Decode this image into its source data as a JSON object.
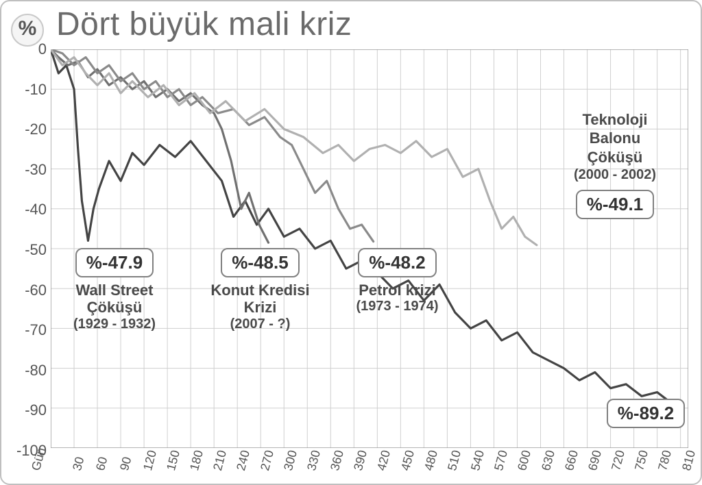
{
  "chart": {
    "type": "line",
    "title": "Dört büyük mali kriz",
    "y_unit_label": "%",
    "title_fontsize": 48,
    "title_color": "#6b6b6b",
    "background_color": "#ffffff",
    "panel_border_color": "#bfbfbf",
    "panel_border_radius": 14,
    "grid_color": "#cfcfcf",
    "grid_stroke_width": 1,
    "axes": {
      "y": {
        "min": -100,
        "max": 0,
        "tick_step": 10,
        "ticks": [
          0,
          -10,
          -20,
          -30,
          -40,
          -50,
          -60,
          -70,
          -80,
          -90,
          -100
        ],
        "tick_labels": [
          "0",
          "-10",
          "-20",
          "-30",
          "-40",
          "-50",
          "-60",
          "-70",
          "-80",
          "-90",
          "-100"
        ],
        "label_fontsize": 22,
        "label_color": "#555555"
      },
      "x": {
        "label": "Gün",
        "min": 0,
        "max": 820,
        "tick_step": 30,
        "ticks": [
          30,
          60,
          90,
          120,
          150,
          180,
          210,
          240,
          270,
          300,
          330,
          360,
          390,
          420,
          450,
          480,
          510,
          540,
          570,
          600,
          630,
          660,
          690,
          720,
          750,
          780,
          810
        ],
        "tick_labels": [
          "30",
          "60",
          "90",
          "120",
          "150",
          "180",
          "210",
          "240",
          "270",
          "300",
          "330",
          "360",
          "390",
          "420",
          "450",
          "480",
          "510",
          "540",
          "570",
          "600",
          "630",
          "660",
          "690",
          "720",
          "750",
          "780",
          "810"
        ],
        "label_fontsize": 18,
        "label_color": "#555555",
        "label_rotation_deg": -75
      }
    },
    "series": [
      {
        "id": "wall_street",
        "color": "#444444",
        "stroke_width": 3.2,
        "data": [
          [
            0,
            0
          ],
          [
            10,
            -6
          ],
          [
            20,
            -4
          ],
          [
            30,
            -10
          ],
          [
            35,
            -25
          ],
          [
            40,
            -38
          ],
          [
            48,
            -48
          ],
          [
            55,
            -40
          ],
          [
            62,
            -35
          ],
          [
            75,
            -28
          ],
          [
            90,
            -33
          ],
          [
            105,
            -26
          ],
          [
            120,
            -29
          ],
          [
            140,
            -24
          ],
          [
            160,
            -27
          ],
          [
            180,
            -23
          ],
          [
            200,
            -28
          ],
          [
            220,
            -33
          ],
          [
            235,
            -42
          ],
          [
            250,
            -38
          ],
          [
            265,
            -44
          ],
          [
            280,
            -40
          ],
          [
            300,
            -47
          ],
          [
            320,
            -45
          ],
          [
            340,
            -50
          ],
          [
            360,
            -48
          ],
          [
            380,
            -55
          ],
          [
            400,
            -53
          ],
          [
            420,
            -56
          ],
          [
            440,
            -60
          ],
          [
            460,
            -58
          ],
          [
            480,
            -63
          ],
          [
            500,
            -59
          ],
          [
            520,
            -66
          ],
          [
            540,
            -70
          ],
          [
            560,
            -68
          ],
          [
            580,
            -73
          ],
          [
            600,
            -71
          ],
          [
            620,
            -76
          ],
          [
            640,
            -78
          ],
          [
            660,
            -80
          ],
          [
            680,
            -83
          ],
          [
            700,
            -81
          ],
          [
            720,
            -85
          ],
          [
            740,
            -84
          ],
          [
            760,
            -87
          ],
          [
            780,
            -86
          ],
          [
            800,
            -89
          ],
          [
            810,
            -89.2
          ]
        ],
        "callout": {
          "value_label": "%-47.9",
          "name_lines": [
            "Wall Street",
            "Çöküşü"
          ],
          "years": "(1929 - 1932)",
          "final_value_label": "%-89.2"
        }
      },
      {
        "id": "konut_kredisi",
        "color": "#707070",
        "stroke_width": 3.2,
        "data": [
          [
            0,
            0
          ],
          [
            10,
            -2
          ],
          [
            22,
            -4
          ],
          [
            35,
            -3
          ],
          [
            48,
            -7
          ],
          [
            60,
            -5
          ],
          [
            75,
            -9
          ],
          [
            90,
            -7
          ],
          [
            105,
            -10
          ],
          [
            120,
            -8
          ],
          [
            135,
            -12
          ],
          [
            150,
            -10
          ],
          [
            165,
            -13
          ],
          [
            180,
            -11
          ],
          [
            195,
            -14
          ],
          [
            210,
            -16
          ],
          [
            220,
            -20
          ],
          [
            232,
            -28
          ],
          [
            245,
            -40
          ],
          [
            255,
            -36
          ],
          [
            268,
            -44
          ],
          [
            280,
            -48.5
          ]
        ],
        "callout": {
          "value_label": "%-48.5",
          "name_lines": [
            "Konut Kredisi",
            "Krizi"
          ],
          "years": "(2007 - ?)"
        }
      },
      {
        "id": "petrol",
        "color": "#8a8a8a",
        "stroke_width": 3.2,
        "data": [
          [
            0,
            0
          ],
          [
            15,
            -1
          ],
          [
            30,
            -4
          ],
          [
            45,
            -2
          ],
          [
            60,
            -6
          ],
          [
            75,
            -4
          ],
          [
            90,
            -8
          ],
          [
            105,
            -6
          ],
          [
            120,
            -10
          ],
          [
            135,
            -8
          ],
          [
            150,
            -12
          ],
          [
            165,
            -10
          ],
          [
            180,
            -14
          ],
          [
            195,
            -12
          ],
          [
            215,
            -16
          ],
          [
            235,
            -15
          ],
          [
            255,
            -19
          ],
          [
            275,
            -17
          ],
          [
            295,
            -22
          ],
          [
            310,
            -24
          ],
          [
            325,
            -30
          ],
          [
            340,
            -36
          ],
          [
            355,
            -33
          ],
          [
            370,
            -40
          ],
          [
            385,
            -45
          ],
          [
            400,
            -44
          ],
          [
            415,
            -48.2
          ]
        ],
        "callout": {
          "value_label": "%-48.2",
          "name_lines": [
            "Petrol krizi"
          ],
          "years": "(1973 - 1974)"
        }
      },
      {
        "id": "teknoloji",
        "color": "#b0b0b0",
        "stroke_width": 3.2,
        "data": [
          [
            0,
            0
          ],
          [
            15,
            -4
          ],
          [
            30,
            -2
          ],
          [
            45,
            -6
          ],
          [
            60,
            -9
          ],
          [
            75,
            -6
          ],
          [
            90,
            -11
          ],
          [
            105,
            -8
          ],
          [
            125,
            -12
          ],
          [
            145,
            -9
          ],
          [
            165,
            -14
          ],
          [
            185,
            -11
          ],
          [
            205,
            -16
          ],
          [
            225,
            -13
          ],
          [
            250,
            -18
          ],
          [
            275,
            -15
          ],
          [
            300,
            -20
          ],
          [
            325,
            -22
          ],
          [
            350,
            -26
          ],
          [
            370,
            -24
          ],
          [
            390,
            -28
          ],
          [
            410,
            -25
          ],
          [
            430,
            -24
          ],
          [
            450,
            -26
          ],
          [
            470,
            -23
          ],
          [
            490,
            -27
          ],
          [
            510,
            -25
          ],
          [
            530,
            -32
          ],
          [
            550,
            -30
          ],
          [
            565,
            -38
          ],
          [
            580,
            -45
          ],
          [
            595,
            -42
          ],
          [
            610,
            -47
          ],
          [
            625,
            -49.1
          ]
        ],
        "callout": {
          "value_label": "%-49.1",
          "name_lines": [
            "Teknoloji",
            "Balonu",
            "Çöküşü"
          ],
          "years": "(2000 - 2002)"
        }
      }
    ],
    "callout_box": {
      "bg": "#ffffff",
      "border_color": "#808080",
      "border_radius": 10,
      "value_fontsize": 26,
      "name_fontsize": 22,
      "years_fontsize": 20,
      "text_color": "#4a4a4a"
    }
  }
}
